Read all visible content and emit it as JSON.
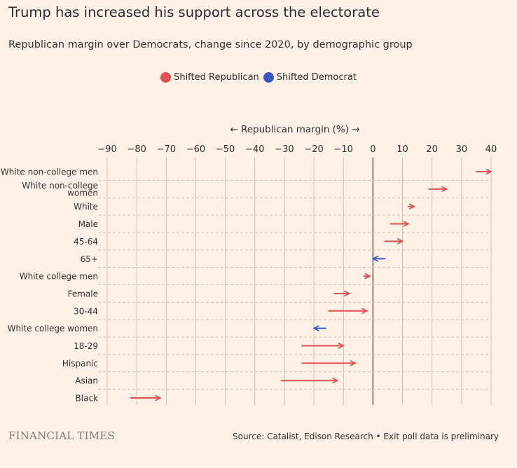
{
  "title": "Trump has increased his support across the electorate",
  "subtitle": "Republican margin over Democrats, change since 2020, by demographic group",
  "legend": [
    {
      "label": "Shifted Republican",
      "color": "#e05151"
    },
    {
      "label": "Shifted Democrat",
      "color": "#3b57c4"
    }
  ],
  "source": "Source: Catalist, Edison Research • Exit poll data is preliminary",
  "logo": "FINANCIAL TIMES",
  "chart_data": {
    "type": "arrow",
    "xlabel": "← Republican margin (%) →",
    "xlim": [
      -90,
      40
    ],
    "ticks": [
      -90,
      -80,
      -70,
      -60,
      -50,
      -40,
      -30,
      -20,
      -10,
      0,
      10,
      20,
      30,
      40
    ],
    "colors": {
      "republican": "#e05151",
      "democrat": "#3b57c4"
    },
    "rows": [
      {
        "group": [
          "White non-college men"
        ],
        "from": 35,
        "to": 40
      },
      {
        "group": [
          "White non-college",
          "women"
        ],
        "from": 19,
        "to": 25
      },
      {
        "group": [
          "White"
        ],
        "from": 12,
        "to": 14
      },
      {
        "group": [
          "Male"
        ],
        "from": 6,
        "to": 12
      },
      {
        "group": [
          "45-64"
        ],
        "from": 4,
        "to": 10
      },
      {
        "group": [
          "65+"
        ],
        "from": 4,
        "to": 0
      },
      {
        "group": [
          "White college men"
        ],
        "from": -3,
        "to": -1
      },
      {
        "group": [
          "Female"
        ],
        "from": -13,
        "to": -8
      },
      {
        "group": [
          "30-44"
        ],
        "from": -15,
        "to": -2
      },
      {
        "group": [
          "White college women"
        ],
        "from": -16,
        "to": -20
      },
      {
        "group": [
          "18-29"
        ],
        "from": -24,
        "to": -10
      },
      {
        "group": [
          "Hispanic"
        ],
        "from": -24,
        "to": -6
      },
      {
        "group": [
          "Asian"
        ],
        "from": -31,
        "to": -12
      },
      {
        "group": [
          "Black"
        ],
        "from": -82,
        "to": -72
      }
    ]
  }
}
